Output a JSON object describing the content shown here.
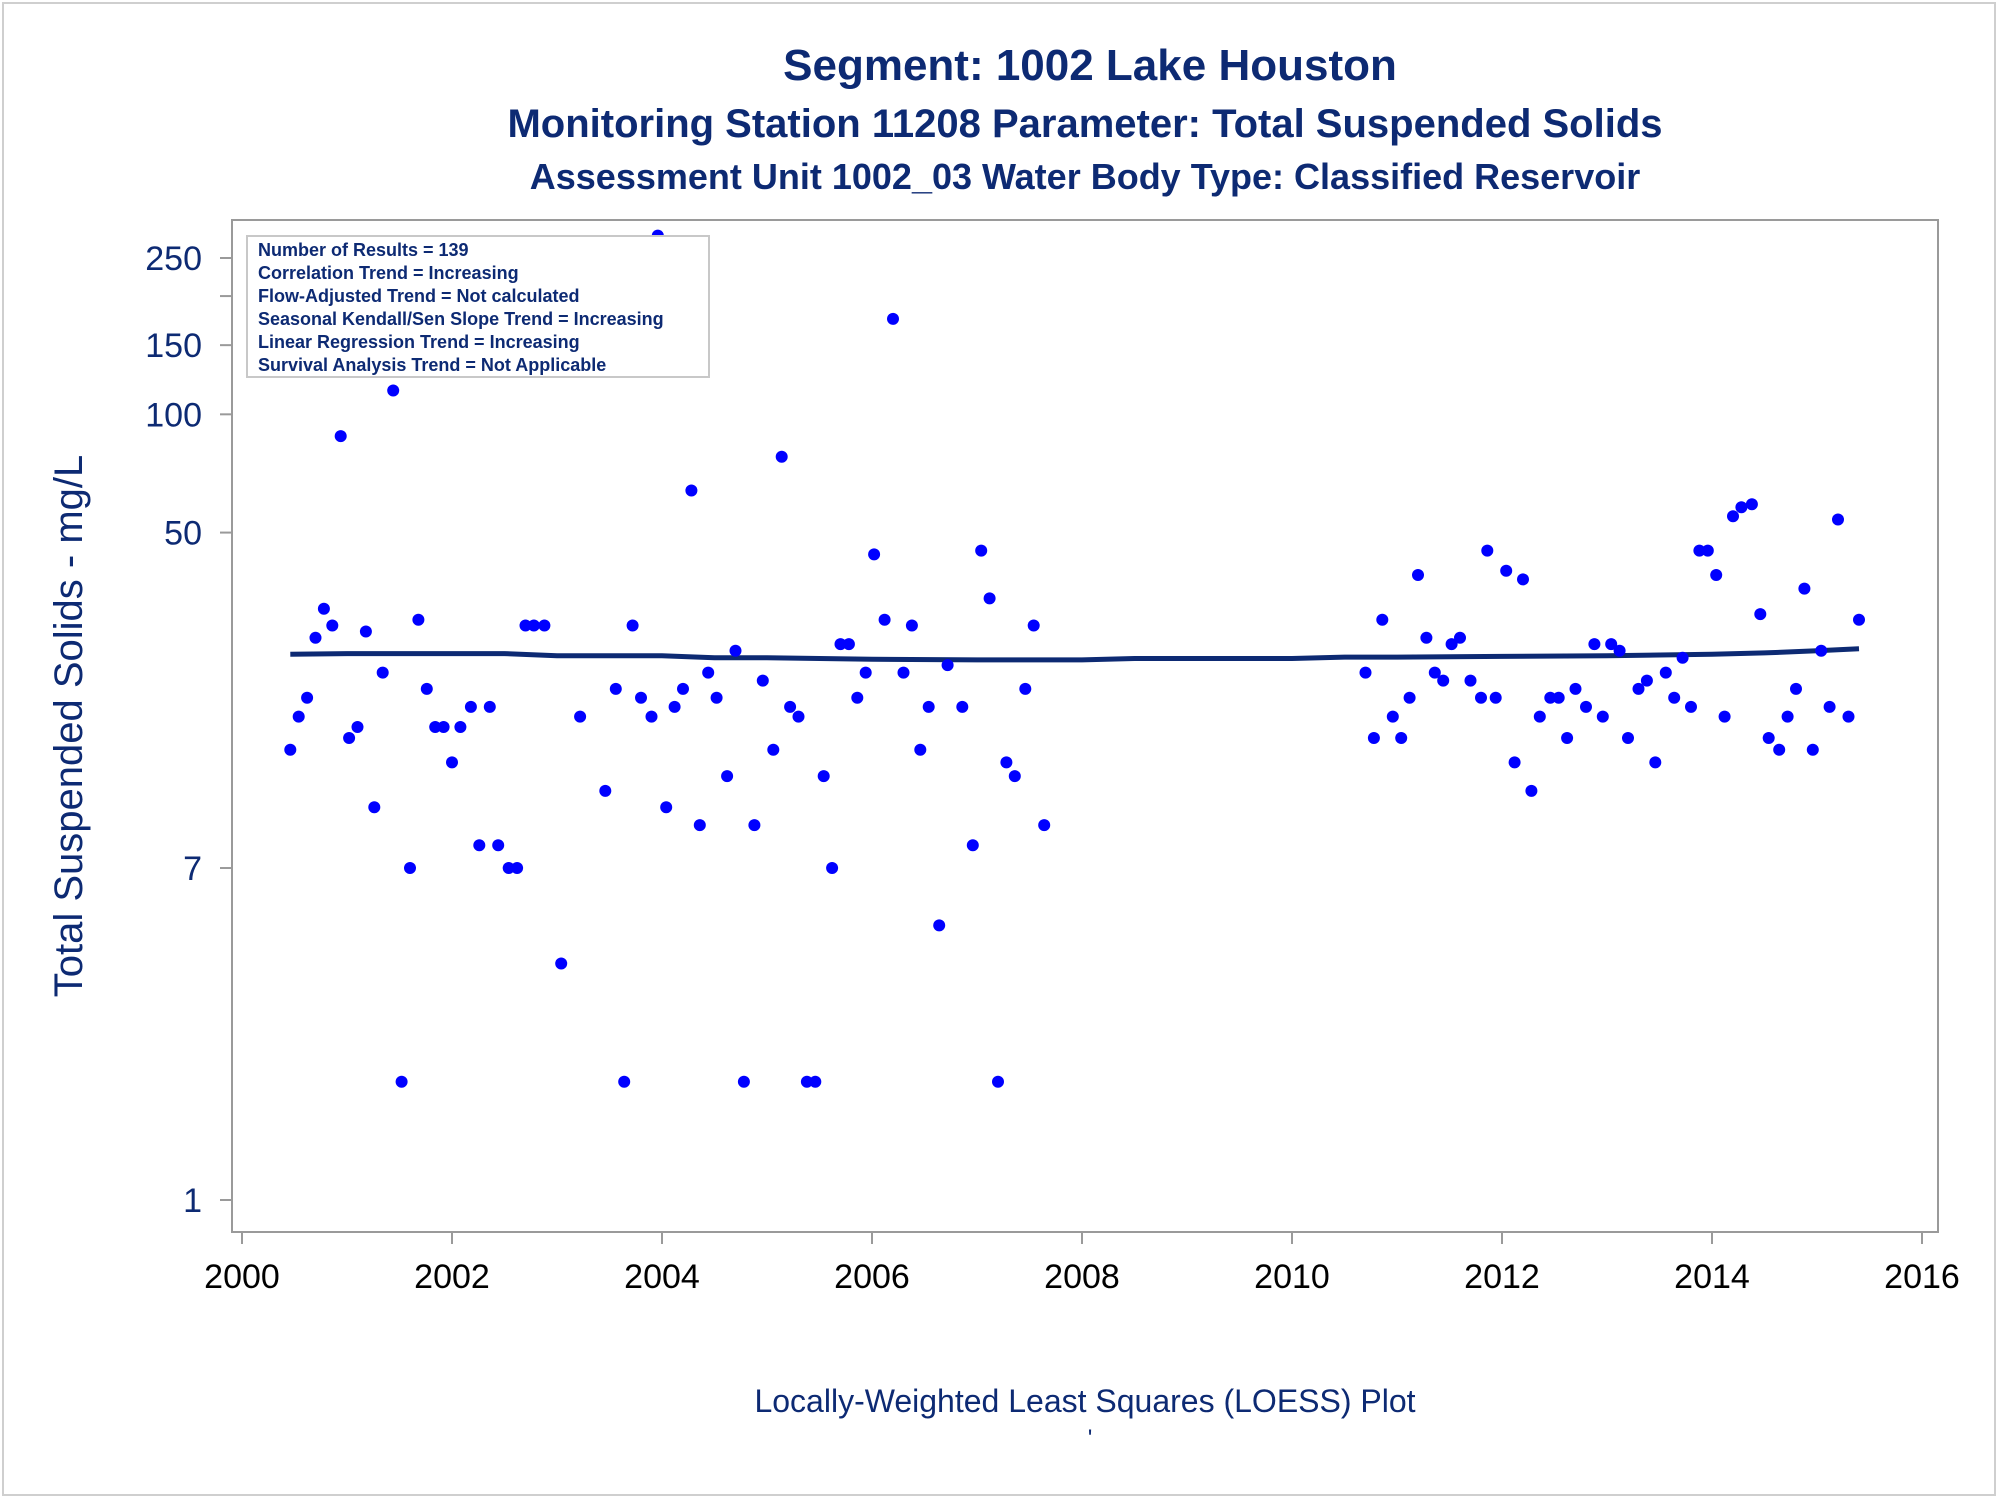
{
  "chart_data": {
    "type": "scatter",
    "title": "Segment: 1002  Lake Houston",
    "subtitle": "Monitoring Station 11208 Parameter: Total Suspended Solids",
    "subtitle2": "Assessment Unit 1002_03   Water Body Type: Classified Reservoir",
    "ylabel": "Total Suspended Solids - mg/L",
    "footnote": "Locally-Weighted Least Squares (LOESS) Plot",
    "footnote_mark": "'",
    "y_scale": "log",
    "xlim": [
      2000,
      2016
    ],
    "ylim": [
      1,
      290
    ],
    "x_ticks": [
      2000,
      2002,
      2004,
      2006,
      2008,
      2010,
      2012,
      2014,
      2016
    ],
    "y_ticks": [
      1,
      7,
      50,
      100,
      150,
      250
    ],
    "y_minor_ticks": [
      200
    ],
    "legend_position": "top-left",
    "stats": [
      "Number of Results = 139",
      "Correlation Trend = Increasing",
      "Flow-Adjusted Trend = Not calculated",
      "Seasonal Kendall/Sen Slope Trend = Increasing",
      "Linear Regression Trend = Increasing",
      "Survival Analysis Trend = Not Applicable"
    ],
    "colors": {
      "points": "#0000ff",
      "trend_line": "#0d2a73",
      "text": "#0d2a73",
      "axis": "#9a9a9a"
    },
    "series": [
      {
        "kind": "scatter",
        "points": [
          [
            2000.46,
            14
          ],
          [
            2000.54,
            17
          ],
          [
            2000.62,
            19
          ],
          [
            2000.7,
            27
          ],
          [
            2000.78,
            32
          ],
          [
            2000.86,
            29
          ],
          [
            2000.94,
            88
          ],
          [
            2001.02,
            15
          ],
          [
            2001.1,
            16
          ],
          [
            2001.18,
            28
          ],
          [
            2001.26,
            10
          ],
          [
            2001.34,
            22
          ],
          [
            2001.44,
            115
          ],
          [
            2001.52,
            2
          ],
          [
            2001.6,
            7
          ],
          [
            2001.68,
            30
          ],
          [
            2001.76,
            20
          ],
          [
            2001.84,
            16
          ],
          [
            2001.92,
            16
          ],
          [
            2002.0,
            13
          ],
          [
            2002.08,
            16
          ],
          [
            2002.18,
            18
          ],
          [
            2002.26,
            8
          ],
          [
            2002.36,
            18
          ],
          [
            2002.44,
            8
          ],
          [
            2002.54,
            7
          ],
          [
            2002.62,
            7
          ],
          [
            2002.7,
            29
          ],
          [
            2002.78,
            29
          ],
          [
            2002.88,
            29
          ],
          [
            2003.04,
            4
          ],
          [
            2003.22,
            17
          ],
          [
            2003.46,
            11
          ],
          [
            2003.56,
            20
          ],
          [
            2003.64,
            2
          ],
          [
            2003.72,
            29
          ],
          [
            2003.8,
            19
          ],
          [
            2003.9,
            17
          ],
          [
            2003.96,
            285
          ],
          [
            2004.04,
            10
          ],
          [
            2004.12,
            18
          ],
          [
            2004.2,
            20
          ],
          [
            2004.28,
            64
          ],
          [
            2004.36,
            9
          ],
          [
            2004.44,
            22
          ],
          [
            2004.52,
            19
          ],
          [
            2004.62,
            12
          ],
          [
            2004.7,
            25
          ],
          [
            2004.78,
            2
          ],
          [
            2004.88,
            9
          ],
          [
            2004.96,
            21
          ],
          [
            2005.06,
            14
          ],
          [
            2005.14,
            78
          ],
          [
            2005.22,
            18
          ],
          [
            2005.3,
            17
          ],
          [
            2005.38,
            2
          ],
          [
            2005.46,
            2
          ],
          [
            2005.54,
            12
          ],
          [
            2005.62,
            7
          ],
          [
            2005.7,
            26
          ],
          [
            2005.78,
            26
          ],
          [
            2005.86,
            19
          ],
          [
            2005.94,
            22
          ],
          [
            2006.02,
            44
          ],
          [
            2006.12,
            30
          ],
          [
            2006.2,
            175
          ],
          [
            2006.3,
            22
          ],
          [
            2006.38,
            29
          ],
          [
            2006.46,
            14
          ],
          [
            2006.54,
            18
          ],
          [
            2006.64,
            5
          ],
          [
            2006.72,
            23
          ],
          [
            2006.86,
            18
          ],
          [
            2006.96,
            8
          ],
          [
            2007.04,
            45
          ],
          [
            2007.12,
            34
          ],
          [
            2007.2,
            2
          ],
          [
            2007.28,
            13
          ],
          [
            2007.36,
            12
          ],
          [
            2007.46,
            20
          ],
          [
            2007.54,
            29
          ],
          [
            2007.64,
            9
          ],
          [
            2010.7,
            22
          ],
          [
            2010.78,
            15
          ],
          [
            2010.86,
            30
          ],
          [
            2010.96,
            17
          ],
          [
            2011.04,
            15
          ],
          [
            2011.12,
            19
          ],
          [
            2011.2,
            39
          ],
          [
            2011.28,
            27
          ],
          [
            2011.36,
            22
          ],
          [
            2011.44,
            21
          ],
          [
            2011.52,
            26
          ],
          [
            2011.6,
            27
          ],
          [
            2011.7,
            21
          ],
          [
            2011.8,
            19
          ],
          [
            2011.86,
            45
          ],
          [
            2011.94,
            19
          ],
          [
            2012.04,
            40
          ],
          [
            2012.12,
            13
          ],
          [
            2012.2,
            38
          ],
          [
            2012.28,
            11
          ],
          [
            2012.36,
            17
          ],
          [
            2012.46,
            19
          ],
          [
            2012.54,
            19
          ],
          [
            2012.62,
            15
          ],
          [
            2012.7,
            20
          ],
          [
            2012.8,
            18
          ],
          [
            2012.88,
            26
          ],
          [
            2012.96,
            17
          ],
          [
            2013.04,
            26
          ],
          [
            2013.12,
            25
          ],
          [
            2013.2,
            15
          ],
          [
            2013.3,
            20
          ],
          [
            2013.38,
            21
          ],
          [
            2013.46,
            13
          ],
          [
            2013.56,
            22
          ],
          [
            2013.64,
            19
          ],
          [
            2013.72,
            24
          ],
          [
            2013.8,
            18
          ],
          [
            2013.88,
            45
          ],
          [
            2013.96,
            45
          ],
          [
            2014.04,
            39
          ],
          [
            2014.12,
            17
          ],
          [
            2014.2,
            55
          ],
          [
            2014.28,
            58
          ],
          [
            2014.38,
            59
          ],
          [
            2014.46,
            31
          ],
          [
            2014.54,
            15
          ],
          [
            2014.64,
            14
          ],
          [
            2014.72,
            17
          ],
          [
            2014.8,
            20
          ],
          [
            2014.88,
            36
          ],
          [
            2014.96,
            14
          ],
          [
            2015.04,
            25
          ],
          [
            2015.12,
            18
          ],
          [
            2015.2,
            54
          ],
          [
            2015.3,
            17
          ],
          [
            2015.4,
            30
          ]
        ]
      },
      {
        "kind": "line",
        "points": [
          [
            2000.46,
            24.5
          ],
          [
            2001.0,
            24.6
          ],
          [
            2002.0,
            24.6
          ],
          [
            2002.5,
            24.6
          ],
          [
            2003.0,
            24.3
          ],
          [
            2004.0,
            24.3
          ],
          [
            2004.5,
            24.0
          ],
          [
            2005.0,
            24.0
          ],
          [
            2005.5,
            23.9
          ],
          [
            2006.0,
            23.8
          ],
          [
            2007.0,
            23.7
          ],
          [
            2008.0,
            23.7
          ],
          [
            2008.5,
            23.9
          ],
          [
            2009.0,
            23.9
          ],
          [
            2010.0,
            23.9
          ],
          [
            2010.5,
            24.1
          ],
          [
            2011.0,
            24.1
          ],
          [
            2012.0,
            24.2
          ],
          [
            2013.0,
            24.3
          ],
          [
            2014.0,
            24.5
          ],
          [
            2014.5,
            24.7
          ],
          [
            2015.0,
            25.0
          ],
          [
            2015.4,
            25.3
          ]
        ]
      }
    ]
  }
}
